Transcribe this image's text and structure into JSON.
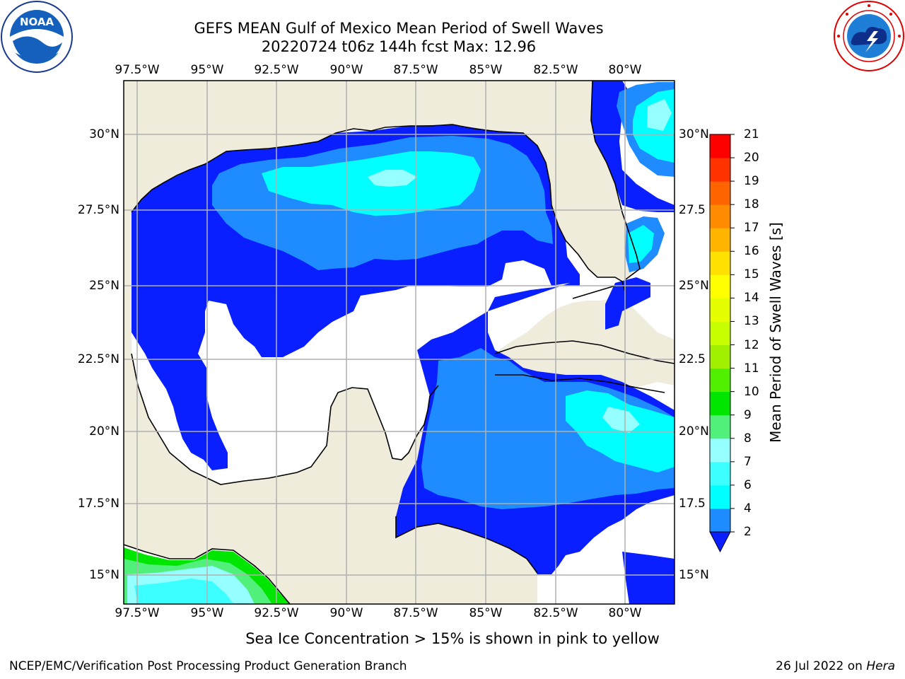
{
  "title": {
    "line1": "GEFS MEAN Gulf of Mexico Mean Period of Swell Waves",
    "line2": "20220724 t06z 144h fcst   Max: 12.96"
  },
  "logos": {
    "left_icon": "noaa-logo",
    "left_text": "NOAA",
    "left_ring_text": "NATIONAL OCEANIC AND ATMOSPHERIC ADMINISTRATION · U.S. DEPARTMENT OF COMMERCE",
    "right_icon": "nws-logo",
    "right_ring_text": "NATIONAL WEATHER SERVICE"
  },
  "map": {
    "lon_ticks": [
      "97.5°W",
      "95°W",
      "92.5°W",
      "90°W",
      "87.5°W",
      "85°W",
      "82.5°W",
      "80°W"
    ],
    "lat_ticks_left": [
      "30°N",
      "27.5°N",
      "25°N",
      "22.5°N",
      "20°N",
      "17.5°N",
      "15°N"
    ],
    "lat_ticks_right": [
      "30°N",
      "27.5",
      "25°N",
      "22.5",
      "20°N",
      "17.5",
      "15°N"
    ],
    "colors": {
      "land": "#efecdc",
      "ocean": "#ffffff",
      "grid": "#b0b0b0"
    }
  },
  "colorbar": {
    "title": "Mean Period of Swell Waves [s]",
    "labels": [
      "2",
      "4",
      "6",
      "7",
      "8",
      "9",
      "10",
      "11",
      "12",
      "13",
      "14",
      "15",
      "16",
      "17",
      "18",
      "19",
      "20",
      "21"
    ],
    "colors": [
      "#0a1fff",
      "#1e8cff",
      "#00ffff",
      "#3cffff",
      "#96ffff",
      "#50f07a",
      "#00e600",
      "#50f000",
      "#a0f000",
      "#c8ff00",
      "#e6ff00",
      "#ffff00",
      "#ffe000",
      "#ffb400",
      "#ff8c00",
      "#ff6400",
      "#ff3200",
      "#ff0000"
    ]
  },
  "notes": {
    "ice": "Sea Ice Concentration > 15% is shown in pink to yellow",
    "footer_left": "NCEP/EMC/Verification Post Processing Product Generation Branch",
    "footer_date": "26 Jul 2022 on",
    "footer_host": "Hera"
  }
}
